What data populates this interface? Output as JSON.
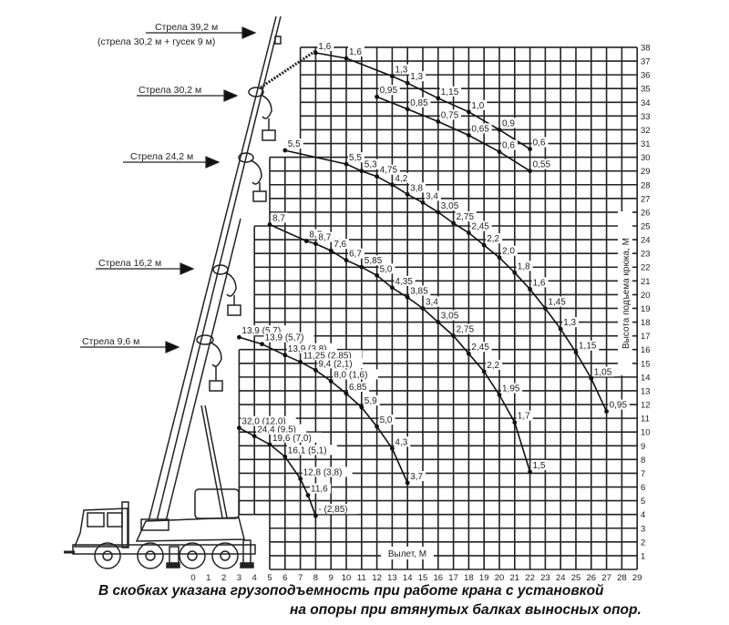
{
  "boom_labels": [
    {
      "text": "Стрела 39,2 м",
      "sub": "(стрела 30,2 м + гусек 9 м)"
    },
    {
      "text": "Стрела 30,2 м"
    },
    {
      "text": "Стрела 24,2 м"
    },
    {
      "text": "Стрела 16,2 м"
    },
    {
      "text": "Стрела 9,6 м"
    }
  ],
  "caption": {
    "line1": "В скобках указана грузоподъемность при работе крана с установкой",
    "line2": "на опоры при втянутых балках выносных опор."
  },
  "chart_data": {
    "type": "line",
    "xlabel": "Вылет, М",
    "ylabel": "Высота подъема крюка, М",
    "xlim": [
      0,
      29
    ],
    "ylim": [
      0,
      38
    ],
    "x_ticks": [
      0,
      1,
      2,
      3,
      4,
      5,
      6,
      7,
      8,
      9,
      10,
      11,
      12,
      13,
      14,
      15,
      16,
      17,
      18,
      19,
      20,
      21,
      22,
      23,
      24,
      25,
      26,
      27,
      28,
      29
    ],
    "y_ticks": [
      1,
      2,
      3,
      4,
      5,
      6,
      7,
      8,
      9,
      10,
      11,
      12,
      13,
      14,
      15,
      16,
      17,
      18,
      19,
      20,
      21,
      22,
      23,
      24,
      25,
      26,
      27,
      28,
      29,
      30,
      31,
      32,
      33,
      34,
      35,
      36,
      37,
      38
    ],
    "grid": true,
    "series": [
      {
        "points": [
          {
            "x": 8,
            "y": 37.6,
            "label": "1,6"
          },
          {
            "x": 10,
            "y": 37.2,
            "label": "1,6"
          },
          {
            "x": 13,
            "y": 35.9,
            "label": "1,3"
          },
          {
            "x": 14,
            "y": 35.4,
            "label": "1,3"
          },
          {
            "x": 16,
            "y": 34.3,
            "label": "1,15"
          },
          {
            "x": 18,
            "y": 33.3,
            "label": "1,0"
          },
          {
            "x": 20,
            "y": 32.0,
            "label": "0,9"
          },
          {
            "x": 22,
            "y": 30.6,
            "label": "0,6"
          }
        ]
      },
      {
        "points": [
          {
            "x": 12,
            "y": 34.4,
            "label": "0,95"
          },
          {
            "x": 14,
            "y": 33.5,
            "label": "0,85"
          },
          {
            "x": 16,
            "y": 32.6,
            "label": "0,75"
          },
          {
            "x": 18,
            "y": 31.6,
            "label": "0,65"
          },
          {
            "x": 20,
            "y": 30.4,
            "label": "0,6"
          },
          {
            "x": 22,
            "y": 29.0,
            "label": "0,55"
          }
        ]
      },
      {
        "points": [
          {
            "x": 6,
            "y": 30.5,
            "label": "5,5"
          },
          {
            "x": 10,
            "y": 29.5,
            "label": "5,5"
          },
          {
            "x": 11,
            "y": 29.0,
            "label": "5,3"
          },
          {
            "x": 12,
            "y": 28.6,
            "label": "4,75"
          },
          {
            "x": 13,
            "y": 28.0,
            "label": "4,2"
          },
          {
            "x": 14,
            "y": 27.3,
            "label": "3,8"
          },
          {
            "x": 15,
            "y": 26.7,
            "label": "3,4"
          },
          {
            "x": 16,
            "y": 26.0,
            "label": "3,05"
          },
          {
            "x": 17,
            "y": 25.2,
            "label": "2,75"
          },
          {
            "x": 18,
            "y": 24.5,
            "label": "2,45"
          },
          {
            "x": 19,
            "y": 23.6,
            "label": "2,2"
          },
          {
            "x": 20,
            "y": 22.7,
            "label": "2,0"
          },
          {
            "x": 21,
            "y": 21.6,
            "label": "1,8"
          },
          {
            "x": 22,
            "y": 20.4,
            "label": "1,6"
          },
          {
            "x": 23,
            "y": 19.0,
            "label": "1,45"
          },
          {
            "x": 24,
            "y": 17.5,
            "label": "1,3"
          },
          {
            "x": 25,
            "y": 15.8,
            "label": "1,15"
          },
          {
            "x": 26,
            "y": 13.9,
            "label": "1,05"
          },
          {
            "x": 27,
            "y": 11.5,
            "label": "0,95"
          }
        ]
      },
      {
        "points": [
          {
            "x": 5,
            "y": 25.1,
            "label": "8,7"
          },
          {
            "x": 7.4,
            "y": 23.9,
            "label": "8,7"
          },
          {
            "x": 8,
            "y": 23.7,
            "label": "8,7"
          },
          {
            "x": 9,
            "y": 23.2,
            "label": "7,6"
          },
          {
            "x": 10,
            "y": 22.5,
            "label": "6,7"
          },
          {
            "x": 11,
            "y": 22.0,
            "label": "5,85"
          },
          {
            "x": 12,
            "y": 21.4,
            "label": "5,0"
          },
          {
            "x": 13,
            "y": 20.5,
            "label": "4,35"
          },
          {
            "x": 14,
            "y": 19.8,
            "label": "3,85"
          },
          {
            "x": 15,
            "y": 19.0,
            "label": "3,4"
          },
          {
            "x": 16,
            "y": 18.0,
            "label": "3,05"
          },
          {
            "x": 17,
            "y": 17.0,
            "label": "2,75"
          },
          {
            "x": 18,
            "y": 15.7,
            "label": "2,45"
          },
          {
            "x": 19,
            "y": 14.4,
            "label": "2,2"
          },
          {
            "x": 20,
            "y": 12.7,
            "label": "1,95"
          },
          {
            "x": 21,
            "y": 10.7,
            "label": "1,7"
          },
          {
            "x": 22,
            "y": 7.1,
            "label": "1,5"
          }
        ]
      },
      {
        "points": [
          {
            "x": 3,
            "y": 16.9,
            "label": "13,9 (5,7)"
          },
          {
            "x": 4.5,
            "y": 16.4,
            "label": "13,9 (5,7)"
          },
          {
            "x": 6,
            "y": 15.6,
            "label": "13,9 (3,8)"
          },
          {
            "x": 7,
            "y": 15.1,
            "label": "11,25 (2,85)"
          },
          {
            "x": 8,
            "y": 14.5,
            "label": "9,4 (2,1)"
          },
          {
            "x": 9,
            "y": 13.7,
            "label": "8,0 (1,6)"
          },
          {
            "x": 10,
            "y": 12.8,
            "label": "6,85"
          },
          {
            "x": 11,
            "y": 11.8,
            "label": "5,9"
          },
          {
            "x": 12,
            "y": 10.4,
            "label": "5,0"
          },
          {
            "x": 13,
            "y": 8.8,
            "label": "4,3"
          },
          {
            "x": 14,
            "y": 6.3,
            "label": "3,7"
          }
        ]
      },
      {
        "points": [
          {
            "x": 3,
            "y": 10.3,
            "label": "32,0 (12,0)"
          },
          {
            "x": 4,
            "y": 9.7,
            "label": "24,4 (9,5)"
          },
          {
            "x": 5,
            "y": 9.1,
            "label": "19,6 (7,0)"
          },
          {
            "x": 6,
            "y": 8.2,
            "label": "16,1 (5,1)"
          },
          {
            "x": 7,
            "y": 6.6,
            "label": "12,8 (3,8)"
          },
          {
            "x": 7.5,
            "y": 5.4,
            "label": "11,6"
          },
          {
            "x": 8,
            "y": 3.9,
            "label": "- (2,85)"
          }
        ]
      }
    ]
  }
}
